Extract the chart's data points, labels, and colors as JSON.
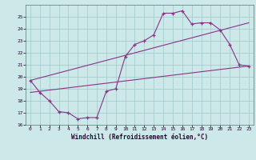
{
  "xlabel": "Windchill (Refroidissement éolien,°C)",
  "bg_color": "#cce8e8",
  "line_color": "#883388",
  "xlim": [
    -0.5,
    23.5
  ],
  "ylim": [
    16,
    26
  ],
  "xticks": [
    0,
    1,
    2,
    3,
    4,
    5,
    6,
    7,
    8,
    9,
    10,
    11,
    12,
    13,
    14,
    15,
    16,
    17,
    18,
    19,
    20,
    21,
    22,
    23
  ],
  "yticks": [
    16,
    17,
    18,
    19,
    20,
    21,
    22,
    23,
    24,
    25
  ],
  "series1_x": [
    0,
    1,
    2,
    3,
    4,
    5,
    6,
    7,
    8,
    9,
    10,
    11,
    12,
    13,
    14,
    15,
    16,
    17,
    18,
    19,
    20,
    21,
    22,
    23
  ],
  "series1_y": [
    19.7,
    18.7,
    18.0,
    17.1,
    17.0,
    16.5,
    16.6,
    16.6,
    18.8,
    19.0,
    21.7,
    22.7,
    23.0,
    23.5,
    25.3,
    25.3,
    25.5,
    24.4,
    24.5,
    24.5,
    23.9,
    22.7,
    21.0,
    20.9
  ],
  "series2_x": [
    0,
    23
  ],
  "series2_y": [
    18.7,
    20.9
  ],
  "series3_x": [
    0,
    23
  ],
  "series3_y": [
    19.7,
    24.5
  ]
}
